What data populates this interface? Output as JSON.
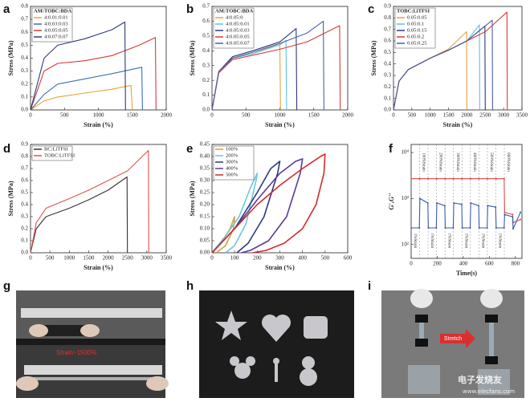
{
  "chart_data": [
    {
      "type": "line",
      "panel": "a",
      "xlabel": "Strain (%)",
      "ylabel": "Stress (MPa)",
      "legend_title": "AM:TOBC:BDA",
      "legend": "upper left",
      "xlim": [
        0,
        2000
      ],
      "xticks": [
        0,
        500,
        1000,
        1500,
        2000
      ],
      "ylim": [
        0,
        0.8
      ],
      "yticks": [
        {
          "value": 0,
          "label": "0.0"
        },
        0.1,
        0.2,
        0.3,
        0.4,
        0.5,
        0.6,
        0.7,
        0.8
      ],
      "series": [
        {
          "name": "4:0.01:0.01",
          "color": "#e8a23a",
          "x": [
            0,
            200,
            400,
            800,
            1200,
            1480,
            1500
          ],
          "values": [
            0,
            0.07,
            0.1,
            0.13,
            0.16,
            0.19,
            0
          ]
        },
        {
          "name": "4:0.03:0.03",
          "color": "#3a6fb8",
          "x": [
            0,
            200,
            400,
            800,
            1200,
            1640,
            1650
          ],
          "values": [
            0,
            0.12,
            0.2,
            0.24,
            0.28,
            0.33,
            0
          ]
        },
        {
          "name": "4:0.05:0.05",
          "color": "#d63a3a",
          "x": [
            0,
            200,
            400,
            800,
            1200,
            1600,
            1840,
            1850
          ],
          "values": [
            0,
            0.3,
            0.36,
            0.38,
            0.42,
            0.5,
            0.56,
            0
          ]
        },
        {
          "name": "4:0.07:0.07",
          "color": "#2b3a7a",
          "x": [
            0,
            200,
            400,
            800,
            1200,
            1390,
            1400
          ],
          "values": [
            0,
            0.4,
            0.5,
            0.55,
            0.62,
            0.68,
            0
          ]
        }
      ]
    },
    {
      "type": "line",
      "panel": "b",
      "xlabel": "Strain (%)",
      "ylabel": "Stress (MPa)",
      "legend_title": "AM:TOBC:BDA",
      "legend": "upper left",
      "xlim": [
        0,
        2000
      ],
      "xticks": [
        0,
        500,
        1000,
        1500,
        2000
      ],
      "ylim": [
        0,
        0.7
      ],
      "yticks": [
        {
          "value": 0,
          "label": "0.0"
        },
        0.1,
        0.2,
        0.3,
        0.4,
        0.5,
        0.6,
        0.7
      ],
      "series": [
        {
          "name": "4:0.05:0",
          "color": "#e8a23a",
          "x": [
            0,
            100,
            300,
            600,
            950,
            1000,
            1010
          ],
          "values": [
            0,
            0.25,
            0.35,
            0.38,
            0.44,
            0.45,
            0
          ]
        },
        {
          "name": "4:0.05:0.01",
          "color": "#5cc4e0",
          "x": [
            0,
            100,
            300,
            600,
            1000,
            1090,
            1100
          ],
          "values": [
            0,
            0.25,
            0.35,
            0.38,
            0.44,
            0.47,
            0
          ]
        },
        {
          "name": "4:0.05:0.03",
          "color": "#2b3a7a",
          "x": [
            0,
            100,
            300,
            600,
            1000,
            1240,
            1250
          ],
          "values": [
            0,
            0.26,
            0.36,
            0.4,
            0.46,
            0.55,
            0
          ]
        },
        {
          "name": "4:0.05:0.05",
          "color": "#d63a3a",
          "x": [
            0,
            100,
            300,
            600,
            1000,
            1400,
            1880,
            1890
          ],
          "values": [
            0,
            0.25,
            0.34,
            0.37,
            0.41,
            0.46,
            0.57,
            0
          ]
        },
        {
          "name": "4:0.05:0.07",
          "color": "#4a5fa8",
          "x": [
            0,
            100,
            300,
            600,
            1000,
            1400,
            1640,
            1650
          ],
          "values": [
            0,
            0.26,
            0.35,
            0.39,
            0.45,
            0.52,
            0.6,
            0
          ]
        }
      ]
    },
    {
      "type": "line",
      "panel": "c",
      "xlabel": "Strain (%)",
      "ylabel": "Stress (MPa)",
      "legend_title": "TOBC:LiTFSI",
      "legend": "upper left",
      "xlim": [
        0,
        3500
      ],
      "xticks": [
        0,
        500,
        1000,
        1500,
        2000,
        2500,
        3000,
        3500
      ],
      "ylim": [
        0,
        0.9
      ],
      "yticks": [
        {
          "value": 0,
          "label": "0.0"
        },
        0.1,
        0.2,
        0.3,
        0.4,
        0.5,
        0.6,
        0.7,
        0.8,
        0.9
      ],
      "series": [
        {
          "name": "0.05:0.05",
          "color": "#e8a23a",
          "x": [
            0,
            150,
            400,
            1000,
            1500,
            1990,
            2000
          ],
          "values": [
            0,
            0.25,
            0.35,
            0.45,
            0.53,
            0.68,
            0
          ]
        },
        {
          "name": "0.05:0.1",
          "color": "#5cc4e0",
          "x": [
            0,
            150,
            400,
            1000,
            1500,
            2000,
            2340,
            2350
          ],
          "values": [
            0,
            0.25,
            0.35,
            0.45,
            0.52,
            0.6,
            0.74,
            0
          ]
        },
        {
          "name": "0.05:0.15",
          "color": "#2b3a7a",
          "x": [
            0,
            150,
            400,
            1000,
            1500,
            2000,
            2490,
            2500
          ],
          "values": [
            0,
            0.25,
            0.35,
            0.45,
            0.52,
            0.6,
            0.73,
            0
          ]
        },
        {
          "name": "0.05:0.2",
          "color": "#d63a3a",
          "x": [
            0,
            150,
            400,
            1000,
            1500,
            2000,
            2500,
            3090,
            3100
          ],
          "values": [
            0,
            0.25,
            0.35,
            0.45,
            0.52,
            0.6,
            0.68,
            0.85,
            0
          ]
        },
        {
          "name": "0.05:0.25",
          "color": "#4a5fa8",
          "x": [
            0,
            150,
            400,
            1000,
            1500,
            2000,
            2690,
            2700
          ],
          "values": [
            0,
            0.25,
            0.35,
            0.45,
            0.52,
            0.6,
            0.78,
            0
          ]
        }
      ]
    },
    {
      "type": "line",
      "panel": "d",
      "xlabel": "Strain (%)",
      "ylabel": "Stress (MPa)",
      "legend": "upper left",
      "xlim": [
        0,
        3500
      ],
      "xticks": [
        0,
        500,
        1000,
        1500,
        2000,
        2500,
        3000,
        3500
      ],
      "ylim": [
        0,
        0.9
      ],
      "yticks": [
        {
          "value": 0,
          "label": "0.0"
        },
        0.1,
        0.2,
        0.3,
        0.4,
        0.5,
        0.6,
        0.7,
        0.8,
        0.9
      ],
      "series": [
        {
          "name": "BC:LiTFSI",
          "color": "#333333",
          "x": [
            0,
            150,
            400,
            1000,
            1500,
            2000,
            2490,
            2500
          ],
          "values": [
            0,
            0.2,
            0.3,
            0.37,
            0.44,
            0.52,
            0.63,
            0
          ]
        },
        {
          "name": "TOBC:LiTFSI",
          "color": "#e05050",
          "x": [
            0,
            150,
            400,
            1000,
            1500,
            2000,
            2500,
            3040,
            3050
          ],
          "values": [
            0,
            0.25,
            0.37,
            0.45,
            0.52,
            0.6,
            0.68,
            0.85,
            0
          ]
        }
      ]
    },
    {
      "type": "line",
      "panel": "e",
      "xlabel": "Strain (%)",
      "ylabel": "Stress (MPa)",
      "legend": "upper left",
      "xlim": [
        0,
        600
      ],
      "xticks": [
        0,
        100,
        200,
        300,
        400,
        500,
        600
      ],
      "ylim": [
        0,
        0.45
      ],
      "yticks": [
        {
          "value": 0,
          "label": "0.00"
        },
        0.05,
        {
          "value": 0.1,
          "label": "0.10"
        },
        0.15,
        {
          "value": 0.2,
          "label": "0.20"
        },
        0.25,
        {
          "value": 0.3,
          "label": "0.30"
        },
        0.35,
        {
          "value": 0.4,
          "label": "0.40"
        },
        0.45
      ],
      "series": [
        {
          "name": "100%",
          "color": "#d9a03a",
          "x": [
            0,
            40,
            80,
            100,
            95,
            60,
            20
          ],
          "values": [
            0,
            0.04,
            0.1,
            0.15,
            0.1,
            0.03,
            0
          ]
        },
        {
          "name": "200%",
          "color": "#6cc6e0",
          "x": [
            0,
            60,
            120,
            170,
            200,
            195,
            150,
            100,
            60
          ],
          "values": [
            0,
            0.07,
            0.15,
            0.27,
            0.33,
            0.3,
            0.12,
            0.03,
            0
          ]
        },
        {
          "name": "300%",
          "color": "#2b3a7a",
          "x": [
            0,
            100,
            200,
            260,
            300,
            290,
            230,
            160,
            110
          ],
          "values": [
            0,
            0.1,
            0.25,
            0.35,
            0.38,
            0.33,
            0.15,
            0.04,
            0
          ]
        },
        {
          "name": "400%",
          "color": "#5a3a9a",
          "x": [
            0,
            100,
            200,
            300,
            370,
            400,
            390,
            330,
            250,
            170,
            130
          ],
          "values": [
            0,
            0.1,
            0.22,
            0.33,
            0.38,
            0.39,
            0.33,
            0.15,
            0.05,
            0.01,
            0
          ]
        },
        {
          "name": "500%",
          "color": "#d62a2a",
          "x": [
            0,
            100,
            200,
            300,
            400,
            480,
            500,
            495,
            460,
            400,
            320,
            240,
            180
          ],
          "values": [
            0,
            0.1,
            0.2,
            0.28,
            0.35,
            0.4,
            0.41,
            0.33,
            0.2,
            0.1,
            0.04,
            0.01,
            0
          ]
        }
      ]
    },
    {
      "type": "line",
      "panel": "f",
      "xlabel": "Time(s)",
      "ylabel": "G',G''",
      "log": true,
      "xlim": [
        0,
        850
      ],
      "xticks": [
        0,
        200,
        400,
        600,
        800
      ],
      "ylim": [
        50,
        15000
      ],
      "yticks": [
        {
          "value": 100,
          "label": "10²"
        },
        {
          "value": 1000,
          "label": "10³"
        },
        {
          "value": 10000,
          "label": "10⁴"
        }
      ],
      "annotations": [
        {
          "text": "1%Strain",
          "x": 32,
          "position": "bottom"
        },
        {
          "text": "100%Strain",
          "x": 97,
          "position": "top"
        },
        {
          "text": "1%Strain",
          "x": 162,
          "position": "bottom"
        },
        {
          "text": "200%Strain",
          "x": 227,
          "position": "top"
        },
        {
          "text": "1%Strain",
          "x": 292,
          "position": "bottom"
        },
        {
          "text": "300%Strain",
          "x": 357,
          "position": "top"
        },
        {
          "text": "1%Strain",
          "x": 422,
          "position": "bottom"
        },
        {
          "text": "400%Strain",
          "x": 487,
          "position": "top"
        },
        {
          "text": "1%Strain",
          "x": 552,
          "position": "bottom"
        },
        {
          "text": "500%Strain",
          "x": 617,
          "position": "top"
        },
        {
          "text": "1%Strain",
          "x": 682,
          "position": "bottom"
        },
        {
          "text": "600%Strain",
          "x": 747,
          "position": "top"
        }
      ],
      "series": [
        {
          "color": "#e04848",
          "x": [
            2,
            63,
            67,
            128,
            132,
            193,
            197,
            258,
            262,
            323,
            327,
            388,
            392,
            453,
            457,
            518,
            522,
            583,
            587,
            648,
            652,
            713,
            717,
            778,
            782,
            838
          ],
          "values": [
            2700,
            2700,
            2700,
            2700,
            2700,
            2700,
            2700,
            2700,
            2700,
            2700,
            2700,
            2700,
            2700,
            2700,
            2700,
            2700,
            2700,
            2700,
            2700,
            2700,
            2700,
            2700,
            500,
            450,
            300,
            350
          ]
        },
        {
          "color": "#3a5aa8",
          "x": [
            2,
            63,
            67,
            128,
            132,
            193,
            197,
            258,
            262,
            323,
            327,
            388,
            392,
            453,
            457,
            518,
            522,
            583,
            587,
            648,
            652,
            713,
            717,
            778,
            782,
            838
          ],
          "values": [
            230,
            230,
            1000,
            800,
            230,
            230,
            800,
            700,
            230,
            230,
            800,
            750,
            230,
            230,
            800,
            700,
            230,
            230,
            700,
            650,
            230,
            230,
            450,
            400,
            220,
            500
          ]
        }
      ]
    }
  ],
  "photos": {
    "g": {
      "panel": "g",
      "annotation": "Strain~1500%"
    },
    "h": {
      "panel": "h"
    },
    "i": {
      "panel": "i",
      "annotation": "Stretch",
      "watermark": "电子发烧友",
      "url": "www.elecfans.com"
    }
  }
}
